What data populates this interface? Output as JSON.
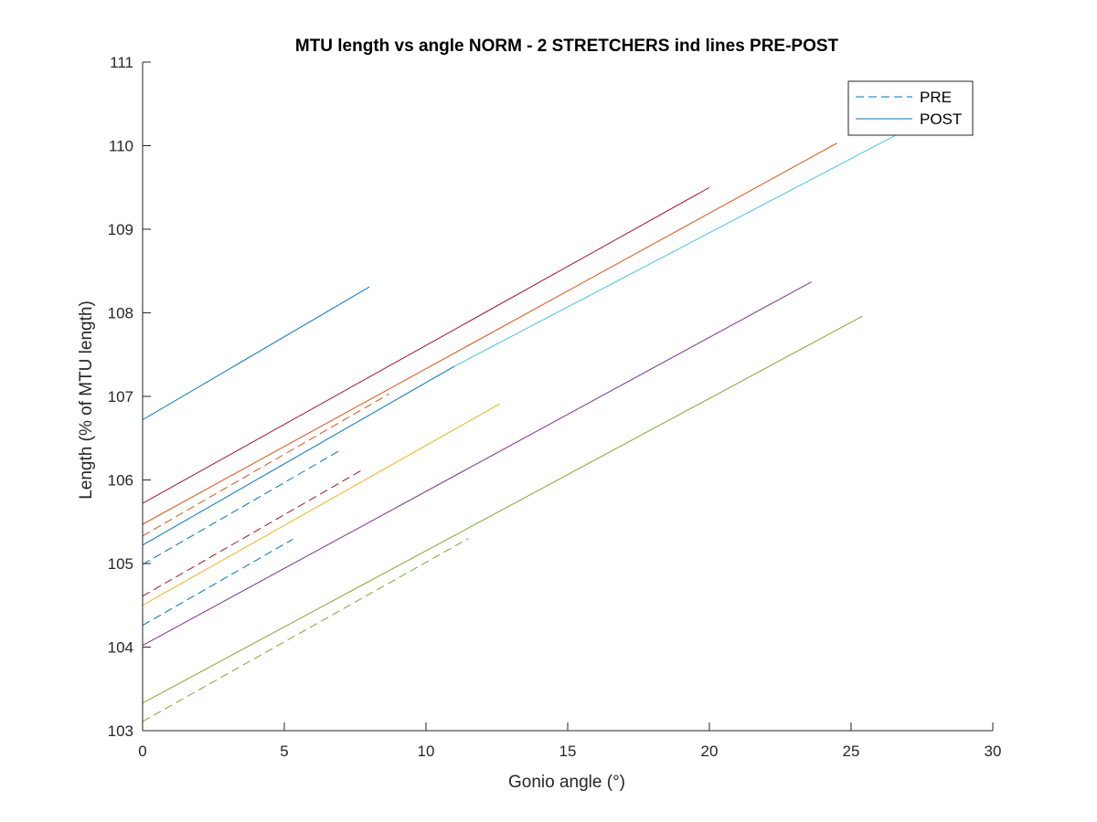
{
  "chart_data": {
    "type": "line",
    "title": "MTU length vs angle NORM - 2 STRETCHERS ind lines PRE-POST",
    "xlabel": "Gonio angle (°)",
    "ylabel": "Length (% of MTU length)",
    "xlim": [
      0,
      30
    ],
    "ylim": [
      103,
      111
    ],
    "xticks": [
      0,
      5,
      10,
      15,
      20,
      25,
      30
    ],
    "yticks": [
      103,
      104,
      105,
      106,
      107,
      108,
      109,
      110,
      111
    ],
    "grid": false,
    "legend": {
      "location": "top-right",
      "entries": [
        {
          "label": "PRE",
          "style": "dashed",
          "color": "#0072BD"
        },
        {
          "label": "POST",
          "style": "solid",
          "color": "#0072BD"
        }
      ]
    },
    "series": [
      {
        "condition": "POST",
        "style": "solid",
        "color": "#0072BD",
        "x": [
          0,
          8.0
        ],
        "y": [
          106.72,
          108.31
        ]
      },
      {
        "condition": "POST",
        "style": "solid",
        "color": "#A2142F",
        "x": [
          0,
          20.0
        ],
        "y": [
          105.72,
          109.5
        ]
      },
      {
        "condition": "POST",
        "style": "solid",
        "color": "#D95319",
        "x": [
          0,
          24.5
        ],
        "y": [
          105.47,
          110.03
        ]
      },
      {
        "condition": "POST",
        "style": "solid",
        "color": "#0072BD",
        "x": [
          0,
          11.0
        ],
        "y": [
          105.22,
          107.36
        ]
      },
      {
        "condition": "POST",
        "style": "solid",
        "color": "#4DBEEE",
        "x": [
          11.0,
          27.0
        ],
        "y": [
          107.36,
          110.2
        ]
      },
      {
        "condition": "POST",
        "style": "solid",
        "color": "#EDB120",
        "x": [
          0,
          12.6
        ],
        "y": [
          104.5,
          106.91
        ]
      },
      {
        "condition": "POST",
        "style": "solid",
        "color": "#7E2F8E",
        "x": [
          0,
          23.6
        ],
        "y": [
          104.02,
          108.37
        ]
      },
      {
        "condition": "POST",
        "style": "solid",
        "color": "#77AC30",
        "x": [
          0,
          25.4
        ],
        "y": [
          103.33,
          107.96
        ]
      },
      {
        "condition": "PRE",
        "style": "dashed",
        "color": "#D95319",
        "x": [
          0,
          8.7
        ],
        "y": [
          105.33,
          107.03
        ]
      },
      {
        "condition": "PRE",
        "style": "dashed",
        "color": "#0072BD",
        "x": [
          0,
          7.0
        ],
        "y": [
          104.99,
          106.36
        ]
      },
      {
        "condition": "PRE",
        "style": "dashed",
        "color": "#A2142F",
        "x": [
          0,
          7.7
        ],
        "y": [
          104.61,
          106.11
        ]
      },
      {
        "condition": "PRE",
        "style": "dashed",
        "color": "#0072BD",
        "x": [
          0,
          5.3
        ],
        "y": [
          104.26,
          105.29
        ]
      },
      {
        "condition": "PRE",
        "style": "dashed",
        "color": "#77AC30",
        "x": [
          0,
          11.5
        ],
        "y": [
          103.11,
          105.3
        ]
      }
    ]
  }
}
